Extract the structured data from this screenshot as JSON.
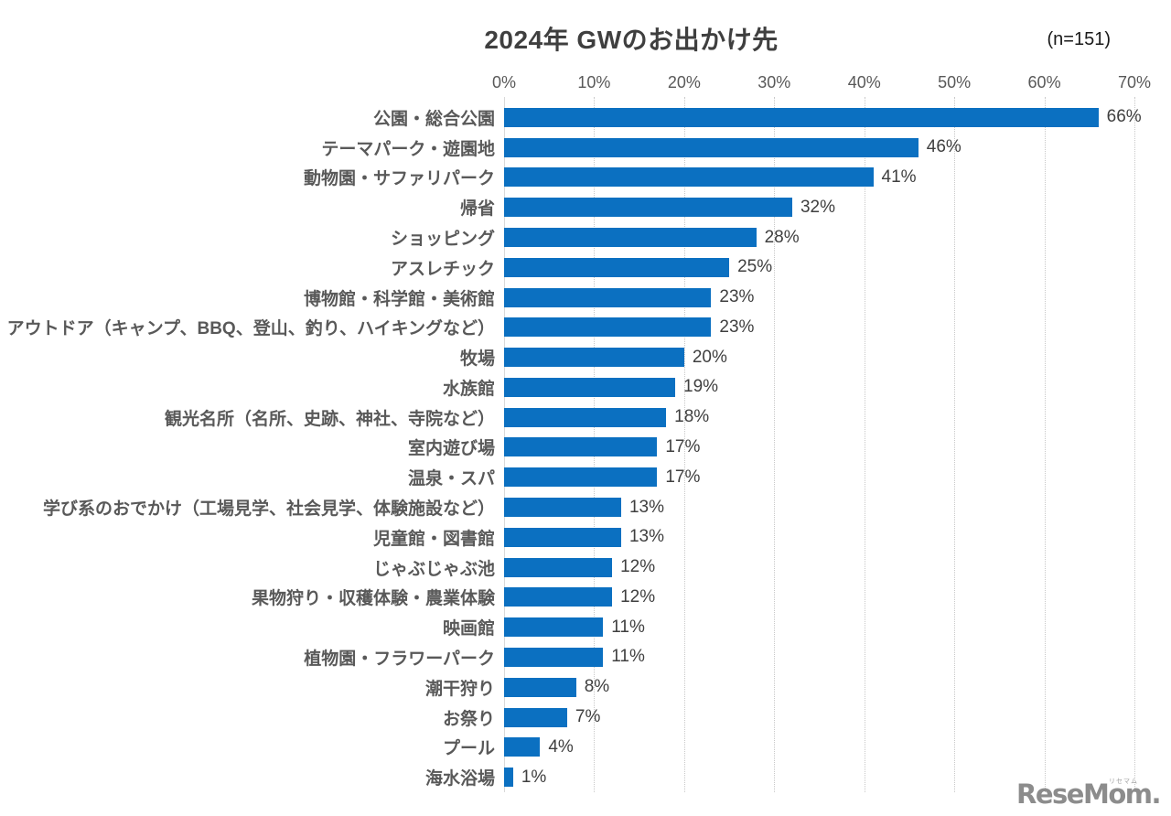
{
  "title": "2024年 GWのお出かけ先",
  "sample_size_label": "(n=151)",
  "watermark": {
    "text": "ReseMom.",
    "ruby": "リセマム"
  },
  "chart_data": {
    "type": "bar",
    "orientation": "horizontal",
    "title": "2024年 GWのお出かけ先",
    "sample_note": "(n=151)",
    "categories": [
      "公園・総合公園",
      "テーマパーク・遊園地",
      "動物園・サファリパーク",
      "帰省",
      "ショッピング",
      "アスレチック",
      "博物館・科学館・美術館",
      "アウトドア（キャンプ、BBQ、登山、釣り、ハイキングなど）",
      "牧場",
      "水族館",
      "観光名所（名所、史跡、神社、寺院など）",
      "室内遊び場",
      "温泉・スパ",
      "学び系のおでかけ（工場見学、社会見学、体験施設など）",
      "児童館・図書館",
      "じゃぶじゃぶ池",
      "果物狩り・収穫体験・農業体験",
      "映画館",
      "植物園・フラワーパーク",
      "潮干狩り",
      "お祭り",
      "プール",
      "海水浴場"
    ],
    "values": [
      66,
      46,
      41,
      32,
      28,
      25,
      23,
      23,
      20,
      19,
      18,
      17,
      17,
      13,
      13,
      12,
      12,
      11,
      11,
      8,
      7,
      4,
      1
    ],
    "unit": "%",
    "xlabel": "",
    "ylabel": "",
    "xlim": [
      0,
      70
    ],
    "x_ticks": [
      "0%",
      "10%",
      "20%",
      "30%",
      "40%",
      "50%",
      "60%",
      "70%"
    ],
    "x_tick_values": [
      0,
      10,
      20,
      30,
      40,
      50,
      60,
      70
    ],
    "gridlines": true,
    "gridline_style": "dotted",
    "value_labels_shown": true,
    "bar_color": "#0b70c1",
    "legend": "none"
  }
}
